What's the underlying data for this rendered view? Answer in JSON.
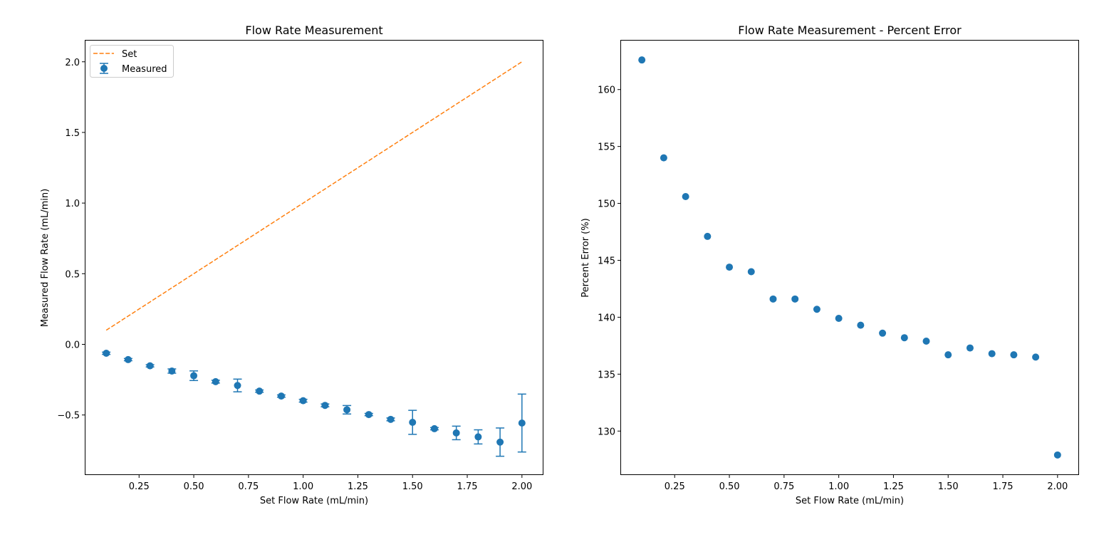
{
  "colors": {
    "measured": "#1f77b4",
    "set": "#ff7f0e",
    "axes": "#000000",
    "background": "#ffffff"
  },
  "chart_data": [
    {
      "type": "scatter",
      "title": "Flow Rate Measurement",
      "xlabel": "Set Flow Rate (mL/min)",
      "ylabel": "Measured Flow Rate (mL/min)",
      "xlim": [
        0.005,
        2.095
      ],
      "ylim": [
        -0.92,
        2.15
      ],
      "xticks": [
        0.25,
        0.5,
        0.75,
        1.0,
        1.25,
        1.5,
        1.75,
        2.0
      ],
      "xtick_labels": [
        "0.25",
        "0.50",
        "0.75",
        "1.00",
        "1.25",
        "1.50",
        "1.75",
        "2.00"
      ],
      "yticks": [
        -0.5,
        0.0,
        0.5,
        1.0,
        1.5,
        2.0
      ],
      "ytick_labels": [
        "−0.5",
        "0.0",
        "0.5",
        "1.0",
        "1.5",
        "2.0"
      ],
      "grid": false,
      "legend": {
        "position": "upper-left",
        "entries": [
          "Set",
          "Measured"
        ]
      },
      "series": [
        {
          "name": "Set",
          "style": "dashed-line",
          "x": [
            0.1,
            2.0
          ],
          "y": [
            0.1,
            2.0
          ]
        },
        {
          "name": "Measured",
          "style": "errorbar-points",
          "x": [
            0.1,
            0.2,
            0.3,
            0.4,
            0.5,
            0.6,
            0.7,
            0.8,
            0.9,
            1.0,
            1.1,
            1.2,
            1.3,
            1.4,
            1.5,
            1.6,
            1.7,
            1.8,
            1.9,
            2.0
          ],
          "y": [
            -0.063,
            -0.108,
            -0.152,
            -0.189,
            -0.222,
            -0.264,
            -0.291,
            -0.331,
            -0.366,
            -0.399,
            -0.432,
            -0.463,
            -0.497,
            -0.531,
            -0.552,
            -0.597,
            -0.627,
            -0.655,
            -0.692,
            -0.557
          ],
          "yerr": [
            0.008,
            0.008,
            0.008,
            0.015,
            0.034,
            0.01,
            0.045,
            0.008,
            0.008,
            0.01,
            0.01,
            0.03,
            0.008,
            0.01,
            0.085,
            0.008,
            0.048,
            0.05,
            0.1,
            0.205
          ]
        }
      ]
    },
    {
      "type": "scatter",
      "title": "Flow Rate Measurement - Percent Error",
      "xlabel": "Set Flow Rate (mL/min)",
      "ylabel": "Percent Error (%)",
      "xlim": [
        0.005,
        2.095
      ],
      "ylim": [
        126.2,
        164.3
      ],
      "xticks": [
        0.25,
        0.5,
        0.75,
        1.0,
        1.25,
        1.5,
        1.75,
        2.0
      ],
      "xtick_labels": [
        "0.25",
        "0.50",
        "0.75",
        "1.00",
        "1.25",
        "1.50",
        "1.75",
        "2.00"
      ],
      "yticks": [
        130,
        135,
        140,
        145,
        150,
        155,
        160
      ],
      "ytick_labels": [
        "130",
        "135",
        "140",
        "145",
        "150",
        "155",
        "160"
      ],
      "grid": false,
      "series": [
        {
          "style": "points",
          "x": [
            0.1,
            0.2,
            0.3,
            0.4,
            0.5,
            0.6,
            0.7,
            0.8,
            0.9,
            1.0,
            1.1,
            1.2,
            1.3,
            1.4,
            1.5,
            1.6,
            1.7,
            1.8,
            1.9,
            2.0
          ],
          "y": [
            162.6,
            154.0,
            150.6,
            147.1,
            144.4,
            144.0,
            141.6,
            141.6,
            140.7,
            139.9,
            139.3,
            138.6,
            138.2,
            137.9,
            136.7,
            137.3,
            136.8,
            136.7,
            136.5,
            127.9
          ]
        }
      ]
    }
  ]
}
